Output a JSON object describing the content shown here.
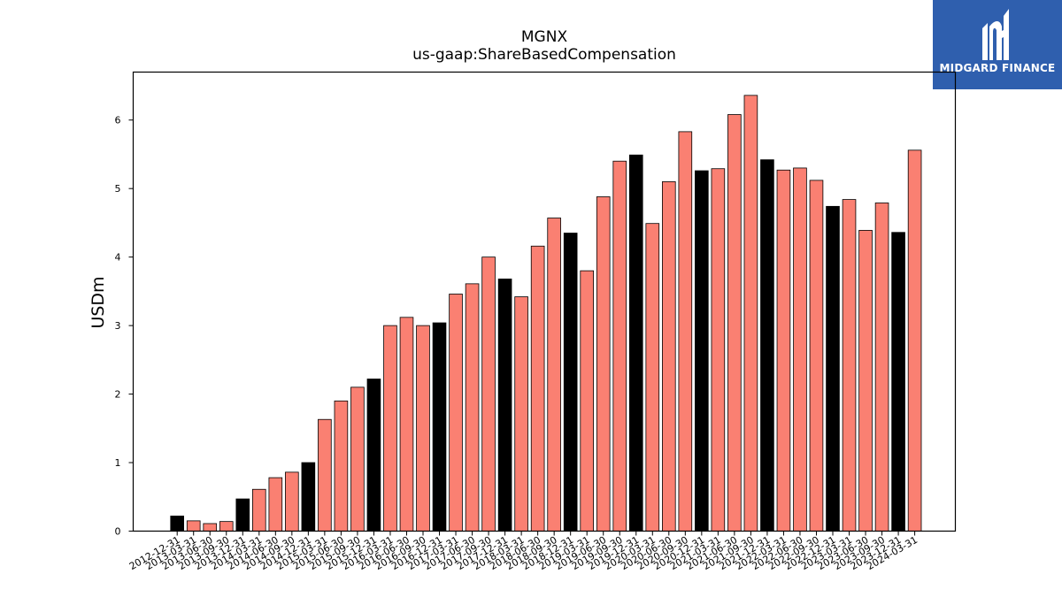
{
  "header": {
    "title": "MGNX",
    "subtitle": "us-gaap:ShareBasedCompensation"
  },
  "brand": {
    "name": "MIDGARD FINANCE",
    "icon": "midgard-logo-icon",
    "background": "#2f5fae"
  },
  "chart_data": {
    "type": "bar",
    "title": "MGNX",
    "subtitle": "us-gaap:ShareBasedCompensation",
    "xlabel": "",
    "ylabel": "USDm",
    "ylim": [
      0,
      6.7
    ],
    "yticks": [
      0,
      1,
      2,
      3,
      4,
      5,
      6
    ],
    "grid": false,
    "colors": {
      "quarter": "#fa8072",
      "year_end": "#000000",
      "edge": "#000000"
    },
    "categories": [
      "2012-12-31",
      "2013-03-31",
      "2013-06-30",
      "2013-09-30",
      "2013-12-31",
      "2014-03-31",
      "2014-06-30",
      "2014-09-30",
      "2014-12-31",
      "2015-03-31",
      "2015-06-30",
      "2015-09-30",
      "2015-12-31",
      "2016-03-31",
      "2016-06-30",
      "2016-09-30",
      "2016-12-31",
      "2017-03-31",
      "2017-06-30",
      "2017-09-30",
      "2017-12-31",
      "2018-03-31",
      "2018-06-30",
      "2018-09-30",
      "2018-12-31",
      "2019-03-31",
      "2019-06-30",
      "2019-09-30",
      "2019-12-31",
      "2020-03-31",
      "2020-06-30",
      "2020-09-30",
      "2020-12-31",
      "2021-03-31",
      "2021-06-30",
      "2021-09-30",
      "2021-12-31",
      "2022-03-31",
      "2022-06-30",
      "2022-09-30",
      "2022-12-31",
      "2023-03-31",
      "2023-06-30",
      "2023-09-30",
      "2023-12-31",
      "2024-03-31"
    ],
    "values": [
      0.22,
      0.15,
      0.11,
      0.14,
      0.47,
      0.61,
      0.78,
      0.86,
      1.0,
      1.63,
      1.9,
      2.1,
      2.22,
      3.0,
      3.12,
      3.0,
      3.04,
      3.46,
      3.61,
      4.0,
      3.68,
      3.42,
      4.16,
      4.57,
      4.35,
      3.8,
      4.88,
      5.4,
      5.49,
      4.49,
      5.1,
      5.83,
      5.26,
      5.29,
      6.08,
      6.36,
      5.42,
      5.27,
      5.3,
      5.12,
      4.74,
      4.84,
      4.39,
      4.79,
      4.36,
      5.56
    ]
  }
}
